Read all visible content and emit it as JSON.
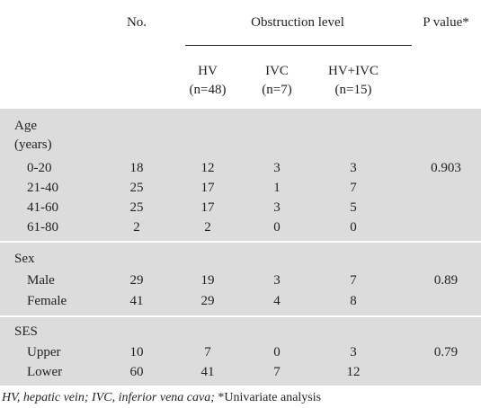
{
  "header": {
    "no": "No.",
    "obstruction": "Obstruction level",
    "p_value": "P value*",
    "groups": [
      {
        "name": "HV",
        "n": "(n=48)"
      },
      {
        "name": "IVC",
        "n": "(n=7)"
      },
      {
        "name": "HV+IVC",
        "n": "(n=15)"
      }
    ]
  },
  "sections": [
    {
      "title": "Age",
      "subtitle": "(years)",
      "rows": [
        {
          "label": "0-20",
          "no": "18",
          "hv": "12",
          "ivc": "3",
          "hvivc": "3",
          "p": "0.903"
        },
        {
          "label": "21-40",
          "no": "25",
          "hv": "17",
          "ivc": "1",
          "hvivc": "7",
          "p": ""
        },
        {
          "label": "41-60",
          "no": "25",
          "hv": "17",
          "ivc": "3",
          "hvivc": "5",
          "p": ""
        },
        {
          "label": "61-80",
          "no": "2",
          "hv": "2",
          "ivc": "0",
          "hvivc": "0",
          "p": ""
        }
      ]
    },
    {
      "title": "Sex",
      "rows": [
        {
          "label": "Male",
          "no": "29",
          "hv": "19",
          "ivc": "3",
          "hvivc": "7",
          "p": "0.89"
        },
        {
          "label": "Female",
          "no": "41",
          "hv": "29",
          "ivc": "4",
          "hvivc": "8",
          "p": ""
        }
      ]
    },
    {
      "title": "SES",
      "rows": [
        {
          "label": "Upper",
          "no": "10",
          "hv": "7",
          "ivc": "0",
          "hvivc": "3",
          "p": "0.79"
        },
        {
          "label": "Lower",
          "no": "60",
          "hv": "41",
          "ivc": "7",
          "hvivc": "12",
          "p": ""
        }
      ]
    }
  ],
  "footnote": {
    "abbrev": "HV, hepatic vein; IVC, inferior vena cava;",
    "note": " *Univariate analysis"
  },
  "colors": {
    "band": "#dcdcdc",
    "text": "#231f20"
  }
}
